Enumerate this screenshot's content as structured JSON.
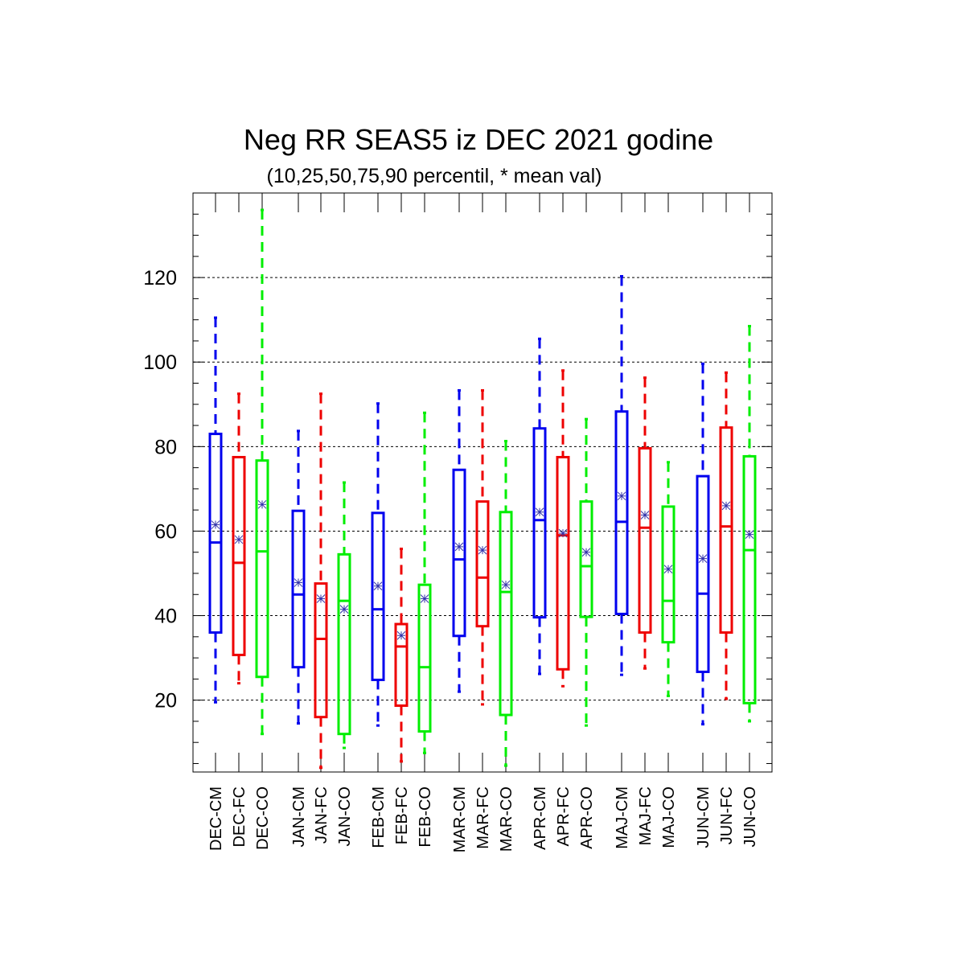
{
  "chart_data": {
    "type": "box",
    "title": "Neg RR SEAS5 iz DEC 2021 godine",
    "subtitle": "(10,25,50,75,90 percentil, * mean val)",
    "xlabel": "",
    "ylabel": "",
    "ylim": [
      3,
      140
    ],
    "yticks": [
      20,
      40,
      60,
      80,
      100,
      120
    ],
    "grid": true,
    "mean_marker": "*",
    "categories": [
      {
        "label": "DEC-CM",
        "color": "#0000ee",
        "p10": 19.5,
        "p25": 36,
        "p50": 57.3,
        "p75": 83,
        "p90": 110.5,
        "mean": 61.5
      },
      {
        "label": "DEC-FC",
        "color": "#ee0000",
        "p10": 24,
        "p25": 30.7,
        "p50": 52.5,
        "p75": 77.5,
        "p90": 92.5,
        "mean": 58
      },
      {
        "label": "DEC-CO",
        "color": "#00ee00",
        "p10": 12,
        "p25": 25.5,
        "p50": 55.2,
        "p75": 76.7,
        "p90": 136,
        "mean": 66.3
      },
      {
        "label": "JAN-CM",
        "color": "#0000ee",
        "p10": 14.5,
        "p25": 27.8,
        "p50": 45,
        "p75": 64.8,
        "p90": 83.7,
        "mean": 47.8
      },
      {
        "label": "JAN-FC",
        "color": "#ee0000",
        "p10": 4,
        "p25": 16,
        "p50": 34.5,
        "p75": 47.6,
        "p90": 92.5,
        "mean": 44
      },
      {
        "label": "JAN-CO",
        "color": "#00ee00",
        "p10": 8.7,
        "p25": 12,
        "p50": 43.5,
        "p75": 54.5,
        "p90": 71.5,
        "mean": 41.5
      },
      {
        "label": "FEB-CM",
        "color": "#0000ee",
        "p10": 14,
        "p25": 24.8,
        "p50": 41.5,
        "p75": 64.3,
        "p90": 90.2,
        "mean": 47
      },
      {
        "label": "FEB-FC",
        "color": "#ee0000",
        "p10": 5.5,
        "p25": 18.7,
        "p50": 32.7,
        "p75": 38,
        "p90": 55.8,
        "mean": 35.3
      },
      {
        "label": "FEB-CO",
        "color": "#00ee00",
        "p10": 7.5,
        "p25": 12.6,
        "p50": 27.8,
        "p75": 47.3,
        "p90": 88,
        "mean": 44
      },
      {
        "label": "MAR-CM",
        "color": "#0000ee",
        "p10": 22,
        "p25": 35.2,
        "p50": 53.3,
        "p75": 74.5,
        "p90": 93.3,
        "mean": 56.3
      },
      {
        "label": "MAR-FC",
        "color": "#ee0000",
        "p10": 19,
        "p25": 37.5,
        "p50": 49,
        "p75": 67,
        "p90": 93.3,
        "mean": 55.5
      },
      {
        "label": "MAR-CO",
        "color": "#00ee00",
        "p10": 4.5,
        "p25": 16.5,
        "p50": 45.6,
        "p75": 64.5,
        "p90": 81.3,
        "mean": 47.3
      },
      {
        "label": "APR-CM",
        "color": "#0000ee",
        "p10": 26.2,
        "p25": 39.6,
        "p50": 62.6,
        "p75": 84.3,
        "p90": 105.5,
        "mean": 64.5
      },
      {
        "label": "APR-FC",
        "color": "#ee0000",
        "p10": 23.3,
        "p25": 27.3,
        "p50": 59,
        "p75": 77.5,
        "p90": 98,
        "mean": 59.5
      },
      {
        "label": "APR-CO",
        "color": "#00ee00",
        "p10": 14,
        "p25": 39.7,
        "p50": 51.7,
        "p75": 67,
        "p90": 86.5,
        "mean": 55
      },
      {
        "label": "MAJ-CM",
        "color": "#0000ee",
        "p10": 26,
        "p25": 40.4,
        "p50": 62.2,
        "p75": 88.3,
        "p90": 120.3,
        "mean": 68.3
      },
      {
        "label": "MAJ-FC",
        "color": "#ee0000",
        "p10": 27.5,
        "p25": 36,
        "p50": 60.8,
        "p75": 79.6,
        "p90": 96.3,
        "mean": 63.8
      },
      {
        "label": "MAJ-CO",
        "color": "#00ee00",
        "p10": 21,
        "p25": 33.7,
        "p50": 43.5,
        "p75": 65.8,
        "p90": 76.3,
        "mean": 51
      },
      {
        "label": "JUN-CM",
        "color": "#0000ee",
        "p10": 14.3,
        "p25": 26.7,
        "p50": 45.2,
        "p75": 73,
        "p90": 99.6,
        "mean": 53.5
      },
      {
        "label": "JUN-FC",
        "color": "#ee0000",
        "p10": 20.3,
        "p25": 36,
        "p50": 61.1,
        "p75": 84.5,
        "p90": 97.5,
        "mean": 66
      },
      {
        "label": "JUN-CO",
        "color": "#00ee00",
        "p10": 15,
        "p25": 19.3,
        "p50": 55.5,
        "p75": 77.7,
        "p90": 108.5,
        "mean": 59.2
      }
    ]
  }
}
